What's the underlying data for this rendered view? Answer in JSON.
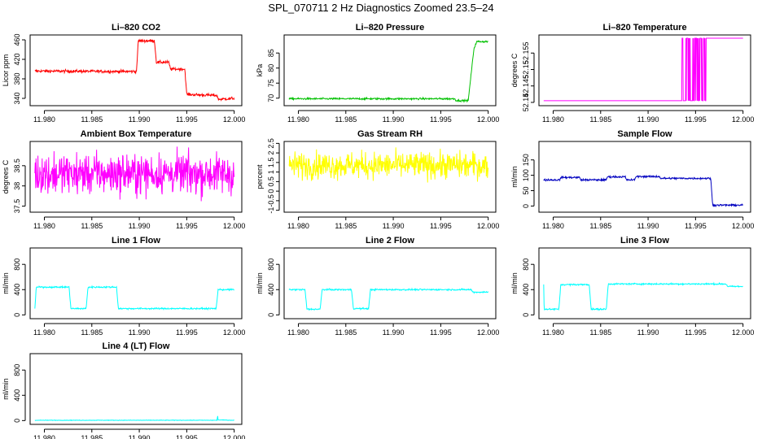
{
  "figure": {
    "title": "SPL_070711  2 Hz Diagnostics Zoomed 23.5–24"
  },
  "chart_data": [
    {
      "type": "line",
      "title": "Li–820 CO2",
      "xlabel": "",
      "ylabel": "Licor ppm",
      "color": "#ff0000",
      "xlim": [
        11.9785,
        12.0008
      ],
      "ylim": [
        325,
        470
      ],
      "xticks": [
        "11.980",
        "11.985",
        "11.990",
        "11.995",
        "12.000"
      ],
      "yticks": [
        340,
        380,
        420,
        460
      ],
      "noise": 1.5,
      "series": [
        {
          "name": "CO2",
          "points": [
            [
              11.979,
              396
            ],
            [
              11.9897,
              395
            ],
            [
              11.9899,
              458
            ],
            [
              11.9916,
              458
            ],
            [
              11.9918,
              414
            ],
            [
              11.9931,
              414
            ],
            [
              11.9933,
              400
            ],
            [
              11.9948,
              400
            ],
            [
              11.995,
              348
            ],
            [
              11.9982,
              346
            ],
            [
              11.9983,
              338
            ],
            [
              12.0,
              340
            ]
          ]
        }
      ]
    },
    {
      "type": "line",
      "title": "Li–820 Pressure",
      "xlabel": "",
      "ylabel": "kPa",
      "color": "#00c000",
      "xlim": [
        11.9785,
        12.0008
      ],
      "ylim": [
        67.5,
        91
      ],
      "xticks": [
        "11.980",
        "11.985",
        "11.990",
        "11.995",
        "12.000"
      ],
      "yticks": [
        70,
        75,
        80,
        85
      ],
      "noise": 0.15,
      "series": [
        {
          "name": "Pressure",
          "points": [
            [
              11.979,
              69.8
            ],
            [
              11.9965,
              69.8
            ],
            [
              11.9966,
              69.2
            ],
            [
              11.9979,
              69.2
            ],
            [
              11.9982,
              78
            ],
            [
              11.9985,
              86.5
            ],
            [
              11.9988,
              88.8
            ],
            [
              12.0,
              88.8
            ]
          ]
        }
      ]
    },
    {
      "type": "line",
      "title": "Li–820 Temperature",
      "xlabel": "",
      "ylabel": "degrees C",
      "color": "#ff00ff",
      "xlim": [
        11.9785,
        12.0008
      ],
      "ylim": [
        52.139,
        52.1605
      ],
      "xticks": [
        "11.980",
        "11.985",
        "11.990",
        "11.995",
        "12.000"
      ],
      "yticks": [
        52.14,
        52.145,
        52.15,
        52.155
      ],
      "noise": 0,
      "low": 52.1405,
      "high": 52.1595,
      "toggle_start": 11.9935,
      "toggle_end": 11.9962,
      "stay_high_from": 11.9962,
      "series": [
        {
          "name": "Temperature",
          "points": [
            [
              11.979,
              52.1405
            ],
            [
              11.9935,
              52.1405
            ],
            [
              11.9962,
              52.1595
            ],
            [
              12.0,
              52.1595
            ]
          ]
        }
      ]
    },
    {
      "type": "line",
      "title": "Ambient Box Temperature",
      "xlabel": "",
      "ylabel": "degrees C",
      "color": "#ff00ff",
      "xlim": [
        11.9785,
        12.0008
      ],
      "ylim": [
        37.35,
        39.1
      ],
      "xticks": [
        "11.980",
        "11.985",
        "11.990",
        "11.995",
        "12.000"
      ],
      "yticks": [
        37.5,
        38.0,
        38.5
      ],
      "noise": 0.25,
      "series": [
        {
          "name": "Ambient",
          "points": [
            [
              11.979,
              38.3
            ],
            [
              12.0,
              38.3
            ]
          ]
        }
      ]
    },
    {
      "type": "line",
      "title": "Gas Stream RH",
      "xlabel": "",
      "ylabel": "percent",
      "color": "#ffff00",
      "xlim": [
        11.9785,
        12.0008
      ],
      "ylim": [
        -1.1,
        2.6
      ],
      "xticks": [
        "11.980",
        "11.985",
        "11.990",
        "11.995",
        "12.000"
      ],
      "yticks": [
        -1.0,
        -0.5,
        0.0,
        0.5,
        1.0,
        1.5,
        2.0,
        2.5
      ],
      "noise": 0.35,
      "series": [
        {
          "name": "RH",
          "points": [
            [
              11.979,
              1.35
            ],
            [
              12.0,
              1.35
            ]
          ]
        }
      ]
    },
    {
      "type": "line",
      "title": "Sample Flow",
      "xlabel": "",
      "ylabel": "ml/min",
      "color": "#0000c0",
      "xlim": [
        11.9785,
        12.0008
      ],
      "ylim": [
        -20,
        210
      ],
      "xticks": [
        "11.980",
        "11.985",
        "11.990",
        "11.995",
        "12.000"
      ],
      "yticks": [
        0,
        50,
        100,
        150
      ],
      "noise": 1.5,
      "series": [
        {
          "name": "Sample",
          "points": [
            [
              11.979,
              85
            ],
            [
              11.9807,
              85
            ],
            [
              11.9808,
              93
            ],
            [
              11.9828,
              93
            ],
            [
              11.9829,
              85
            ],
            [
              11.9856,
              85
            ],
            [
              11.9857,
              95
            ],
            [
              11.9876,
              95
            ],
            [
              11.9877,
              85
            ],
            [
              11.9886,
              85
            ],
            [
              11.9887,
              96
            ],
            [
              11.9912,
              96
            ],
            [
              11.9913,
              90
            ],
            [
              11.9966,
              90
            ],
            [
              11.9968,
              3
            ],
            [
              12.0,
              3
            ]
          ]
        }
      ]
    },
    {
      "type": "line",
      "title": "Line 1 Flow",
      "xlabel": "",
      "ylabel": "ml/min",
      "color": "#00ffff",
      "xlim": [
        11.9785,
        12.0008
      ],
      "ylim": [
        -60,
        1060
      ],
      "xticks": [
        "11.980",
        "11.985",
        "11.990",
        "11.995",
        "12.000"
      ],
      "yticks": [
        0,
        400,
        800
      ],
      "noise": 6,
      "series": [
        {
          "name": "Line 1",
          "points": [
            [
              11.979,
              100
            ],
            [
              11.97915,
              440
            ],
            [
              11.9826,
              440
            ],
            [
              11.9828,
              100
            ],
            [
              11.9844,
              100
            ],
            [
              11.9846,
              440
            ],
            [
              11.9876,
              440
            ],
            [
              11.9878,
              100
            ],
            [
              11.9981,
              100
            ],
            [
              11.9983,
              400
            ],
            [
              12.0,
              400
            ]
          ]
        }
      ]
    },
    {
      "type": "line",
      "title": "Line 2 Flow",
      "xlabel": "",
      "ylabel": "ml/min",
      "color": "#00ffff",
      "xlim": [
        11.9785,
        12.0008
      ],
      "ylim": [
        -60,
        1060
      ],
      "xticks": [
        "11.980",
        "11.985",
        "11.990",
        "11.995",
        "12.000"
      ],
      "yticks": [
        0,
        400,
        800
      ],
      "noise": 6,
      "series": [
        {
          "name": "Line 2",
          "points": [
            [
              11.979,
              400
            ],
            [
              11.9807,
              400
            ],
            [
              11.9809,
              90
            ],
            [
              11.9823,
              90
            ],
            [
              11.9825,
              400
            ],
            [
              11.9856,
              400
            ],
            [
              11.9858,
              100
            ],
            [
              11.9874,
              100
            ],
            [
              11.9876,
              400
            ],
            [
              11.9982,
              400
            ],
            [
              11.9984,
              360
            ],
            [
              12.0,
              360
            ]
          ]
        }
      ]
    },
    {
      "type": "line",
      "title": "Line 3 Flow",
      "xlabel": "",
      "ylabel": "ml/min",
      "color": "#00ffff",
      "xlim": [
        11.9785,
        12.0008
      ],
      "ylim": [
        -60,
        1060
      ],
      "xticks": [
        "11.980",
        "11.985",
        "11.990",
        "11.995",
        "12.000"
      ],
      "yticks": [
        0,
        400,
        800
      ],
      "noise": 6,
      "series": [
        {
          "name": "Line 3",
          "points": [
            [
              11.979,
              490
            ],
            [
              11.97905,
              90
            ],
            [
              11.9806,
              90
            ],
            [
              11.9808,
              480
            ],
            [
              11.9838,
              480
            ],
            [
              11.984,
              90
            ],
            [
              11.9856,
              90
            ],
            [
              11.9858,
              490
            ],
            [
              11.9982,
              490
            ],
            [
              11.9984,
              450
            ],
            [
              12.0,
              450
            ]
          ]
        }
      ]
    },
    {
      "type": "line",
      "title": "Line 4 (LT) Flow",
      "xlabel": "",
      "ylabel": "ml/min",
      "color": "#00ffff",
      "xlim": [
        11.9785,
        12.0008
      ],
      "ylim": [
        -60,
        1060
      ],
      "xticks": [
        "11.980",
        "11.985",
        "11.990",
        "11.995",
        "12.000"
      ],
      "yticks": [
        0,
        400,
        800
      ],
      "noise": 2,
      "series": [
        {
          "name": "Line 4",
          "points": [
            [
              11.979,
              5
            ],
            [
              11.9982,
              5
            ],
            [
              11.99825,
              90
            ],
            [
              11.9983,
              10
            ],
            [
              12.0,
              5
            ]
          ]
        }
      ]
    }
  ]
}
